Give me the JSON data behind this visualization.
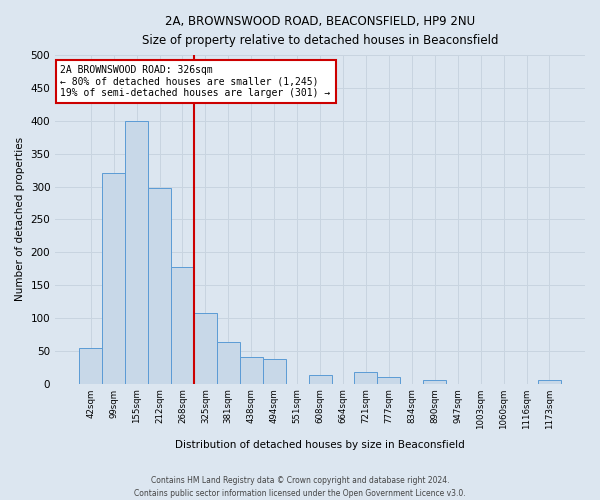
{
  "title": "2A, BROWNSWOOD ROAD, BEACONSFIELD, HP9 2NU",
  "subtitle": "Size of property relative to detached houses in Beaconsfield",
  "xlabel": "Distribution of detached houses by size in Beaconsfield",
  "ylabel": "Number of detached properties",
  "footer_line1": "Contains HM Land Registry data © Crown copyright and database right 2024.",
  "footer_line2": "Contains public sector information licensed under the Open Government Licence v3.0.",
  "bin_labels": [
    "42sqm",
    "99sqm",
    "155sqm",
    "212sqm",
    "268sqm",
    "325sqm",
    "381sqm",
    "438sqm",
    "494sqm",
    "551sqm",
    "608sqm",
    "664sqm",
    "721sqm",
    "777sqm",
    "834sqm",
    "890sqm",
    "947sqm",
    "1003sqm",
    "1060sqm",
    "1116sqm",
    "1173sqm"
  ],
  "bin_values": [
    55,
    320,
    400,
    298,
    178,
    108,
    63,
    40,
    37,
    0,
    13,
    0,
    17,
    10,
    0,
    5,
    0,
    0,
    0,
    0,
    5
  ],
  "bar_color": "#c8d8e8",
  "bar_edge_color": "#5b9bd5",
  "annotation_title": "2A BROWNSWOOD ROAD: 326sqm",
  "annotation_line1": "← 80% of detached houses are smaller (1,245)",
  "annotation_line2": "19% of semi-detached houses are larger (301) →",
  "annotation_box_facecolor": "#ffffff",
  "annotation_box_edgecolor": "#cc0000",
  "vline_color": "#cc0000",
  "vline_x": 5.0,
  "ylim": [
    0,
    500
  ],
  "yticks": [
    0,
    50,
    100,
    150,
    200,
    250,
    300,
    350,
    400,
    450,
    500
  ],
  "grid_color": "#c8d4e0",
  "background_color": "#dce6f0",
  "plot_bg_color": "#dce6f0"
}
